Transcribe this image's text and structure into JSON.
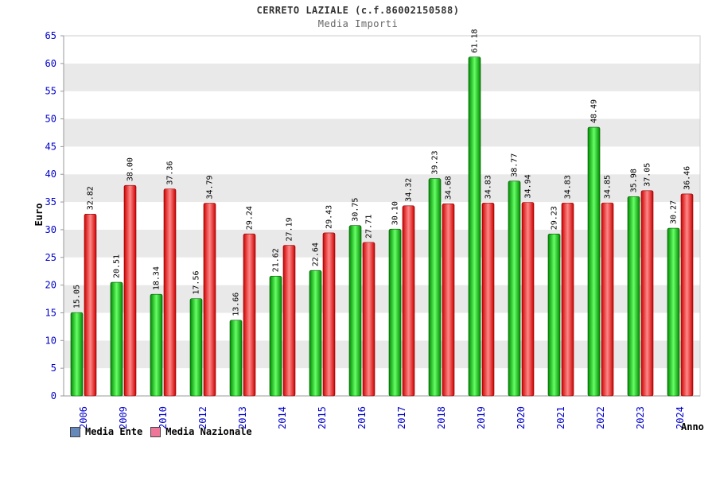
{
  "header": {
    "title": "CERRETO LAZIALE (c.f.86002150588)",
    "subtitle": "Media Importi"
  },
  "chart_data": {
    "type": "bar",
    "title": "CERRETO LAZIALE (c.f.86002150588)",
    "subtitle": "Media Importi",
    "xlabel": "Anno",
    "ylabel": "Euro",
    "ylim": [
      0,
      65
    ],
    "ytick_step": 5,
    "grid": "horizontal-bands",
    "legend_position": "bottom-left",
    "categories": [
      "2006",
      "2009",
      "2010",
      "2012",
      "2013",
      "2014",
      "2015",
      "2016",
      "2017",
      "2018",
      "2019",
      "2020",
      "2021",
      "2022",
      "2023",
      "2024"
    ],
    "series": [
      {
        "name": "Media Ente",
        "legend_color": "#6688bb",
        "bar_color_edge": "#008800",
        "bar_color_mid": "#66ff66",
        "bar_stroke": "#005500",
        "values": [
          15.05,
          20.51,
          18.34,
          17.56,
          13.66,
          21.62,
          22.64,
          30.75,
          30.1,
          39.23,
          61.18,
          38.77,
          29.23,
          48.49,
          35.98,
          30.27
        ]
      },
      {
        "name": "Media Nazionale",
        "legend_color": "#ee7799",
        "bar_color_edge": "#cc0000",
        "bar_color_mid": "#ff8888",
        "bar_stroke": "#880000",
        "values": [
          32.82,
          38.0,
          37.36,
          34.79,
          29.24,
          27.19,
          29.43,
          27.71,
          34.32,
          34.68,
          34.83,
          34.94,
          34.83,
          34.85,
          37.05,
          36.46
        ]
      }
    ],
    "axis_text_color": "#0000cc",
    "band_color_a": "#ffffff",
    "band_color_b": "#e9e9e9",
    "value_label_color": "#000000"
  }
}
